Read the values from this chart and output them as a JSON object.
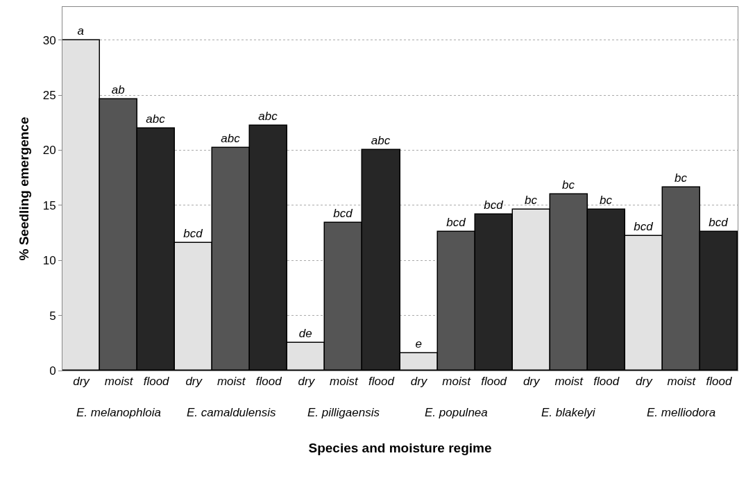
{
  "chart_data": {
    "type": "bar",
    "xlabel": "Species and moisture regime",
    "ylabel": "% Seedling emergence",
    "categories": [
      "dry",
      "moist",
      "flood",
      "dry",
      "moist",
      "flood",
      "dry",
      "moist",
      "flood",
      "dry",
      "moist",
      "flood",
      "dry",
      "moist",
      "flood",
      "dry",
      "moist",
      "flood"
    ],
    "values": [
      30,
      24.6,
      22.0,
      11.6,
      20.2,
      22.2,
      2.5,
      13.4,
      20,
      1.6,
      12.6,
      14.2,
      14.6,
      16.0,
      14.6,
      12.2,
      16.6,
      12.6
    ],
    "colors": [
      "#e2e2e2",
      "#555555",
      "#262626",
      "#e2e2e2",
      "#555555",
      "#262626",
      "#e2e2e2",
      "#555555",
      "#262626",
      "#e2e2e2",
      "#555555",
      "#262626",
      "#e2e2e2",
      "#555555",
      "#262626",
      "#e2e2e2",
      "#555555",
      "#262626"
    ],
    "value_labels": [
      "a",
      "ab",
      "abc",
      "bcd",
      "abc",
      "abc",
      "de",
      "bcd",
      "abc",
      "e",
      "bcd",
      "bcd",
      "bc",
      "bc",
      "bc",
      "bcd",
      "bc",
      "bcd"
    ],
    "annotations": [
      "E. melanophloia",
      "E. camaldulensis",
      "E. pilligaensis",
      "E. populnea",
      "E. blakelyi",
      "E. melliodora"
    ],
    "ylim": [
      0,
      33
    ],
    "yticks": [
      0,
      5,
      10,
      15,
      20,
      25,
      30
    ],
    "grid": "y"
  }
}
